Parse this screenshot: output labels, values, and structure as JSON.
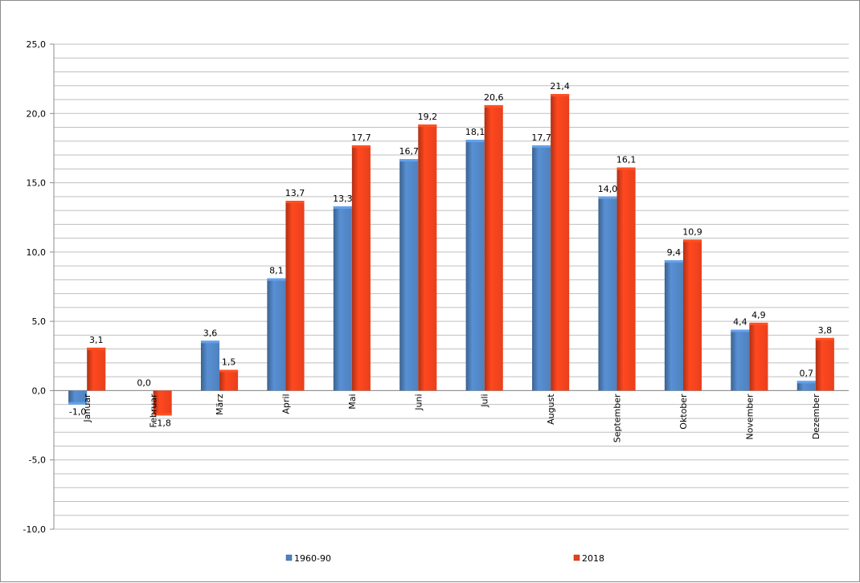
{
  "chart_data": {
    "type": "bar",
    "categories": [
      "Januar",
      "Februar",
      "März",
      "April",
      "Mai",
      "Juni",
      "Juli",
      "August",
      "September",
      "Oktober",
      "November",
      "Dezember"
    ],
    "series": [
      {
        "name": "1960-90",
        "color": "#4f81bd",
        "values": [
          -1.0,
          0.0,
          3.6,
          8.1,
          13.3,
          16.7,
          18.1,
          17.7,
          14.0,
          9.4,
          4.4,
          0.7
        ],
        "labels": [
          "-1,0",
          "0,0",
          "3,6",
          "8,1",
          "13,3",
          "16,7",
          "18,1",
          "17,7",
          "14,0",
          "9,4",
          "4,4",
          "0,7"
        ]
      },
      {
        "name": "2018",
        "color": "#e8401c",
        "values": [
          3.1,
          -1.8,
          1.5,
          13.7,
          17.7,
          19.2,
          20.6,
          21.4,
          16.1,
          10.9,
          4.9,
          3.8
        ],
        "labels": [
          "3,1",
          "-1,8",
          "1,5",
          "13,7",
          "17,7",
          "19,2",
          "20,6",
          "21,4",
          "16,1",
          "10,9",
          "4,9",
          "3,8"
        ]
      }
    ],
    "ylim": [
      -10,
      25
    ],
    "yticks": [
      25,
      20,
      15,
      10,
      5,
      0,
      -5,
      -10
    ],
    "ytick_labels": [
      "25,0",
      "20,0",
      "15,0",
      "10,0",
      "5,0",
      "0,0",
      "-5,0",
      "-10,0"
    ],
    "grid": true,
    "legend": "bottom"
  }
}
